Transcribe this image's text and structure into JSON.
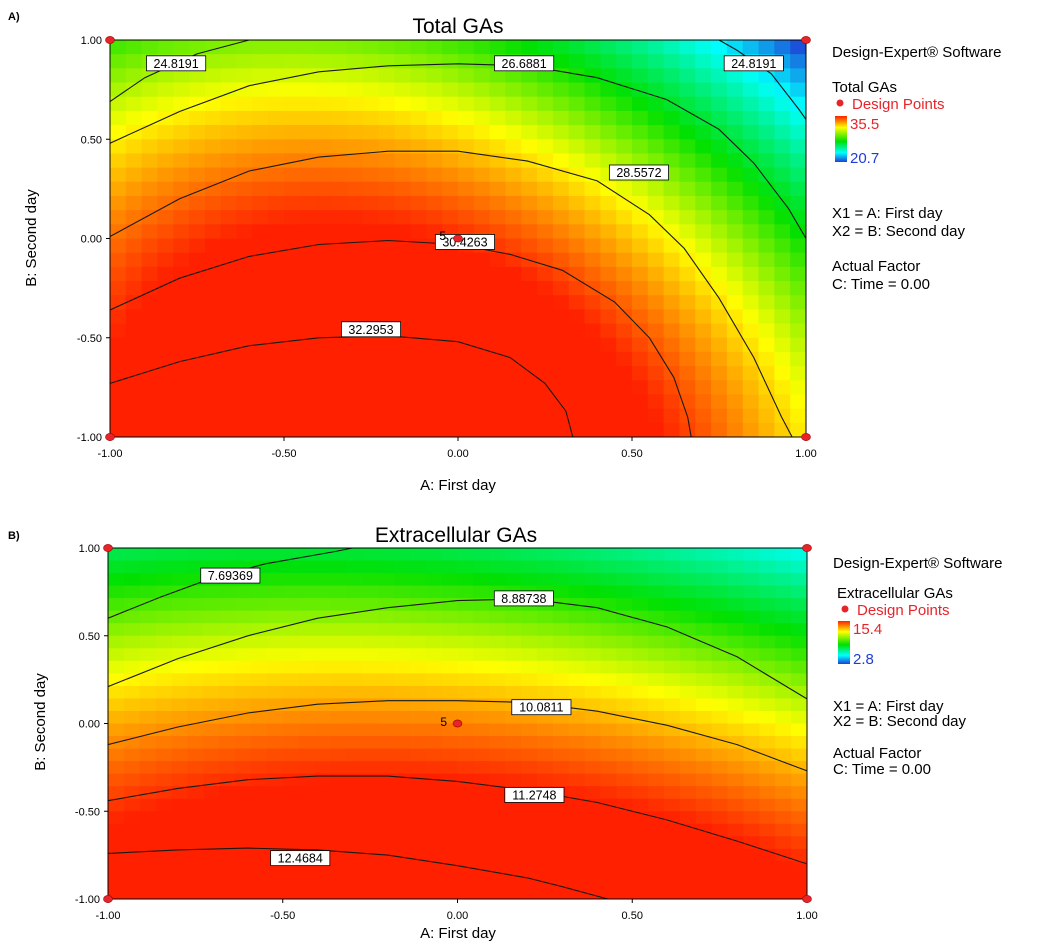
{
  "panels": [
    {
      "tag": "A)",
      "title": "Total GAs",
      "xlabel": "A: First day",
      "ylabel": "B: Second day",
      "xticks": [
        "-1.00",
        "-0.50",
        "0.00",
        "0.50",
        "1.00"
      ],
      "yticks": [
        "1.00",
        "0.50",
        "0.00",
        "-0.50",
        "-1.00"
      ],
      "legend": {
        "software": "Design-Expert® Software",
        "response": "Total GAs",
        "design_points": "Design Points",
        "high": "35.5",
        "low": "20.7",
        "x1": "X1 = A: First day",
        "x2": "X2 = B: Second day",
        "actual_factor": "Actual Factor",
        "factor_value": "C: Time = 0.00"
      },
      "center_point_label": "5"
    },
    {
      "tag": "B)",
      "title": "Extracellular GAs",
      "xlabel": "A: First day",
      "ylabel": "B: Second day",
      "xticks": [
        "-1.00",
        "-0.50",
        "0.00",
        "0.50",
        "1.00"
      ],
      "yticks": [
        "1.00",
        "0.50",
        "0.00",
        "-0.50",
        "-1.00"
      ],
      "legend": {
        "software": "Design-Expert® Software",
        "response": "Extracellular GAs",
        "design_points": "Design Points",
        "high": "15.4",
        "low": "2.8",
        "x1": "X1 = A: First day",
        "x2": "X2 = B: Second day",
        "actual_factor": "Actual Factor",
        "factor_value": "C: Time = 0.00"
      },
      "center_point_label": "5"
    }
  ],
  "chart_data": [
    {
      "type": "heatmap",
      "title": "Total GAs",
      "xlabel": "A: First day",
      "ylabel": "B: Second day",
      "xlim": [
        -1,
        1
      ],
      "ylim": [
        -1,
        1
      ],
      "color_range": [
        20.7,
        35.5
      ],
      "colors": {
        "low": "#1f3dd6",
        "mid_low": "#00ffff",
        "mid": "#00e000",
        "mid_high": "#ffff00",
        "high": "#ff2000"
      },
      "contour_levels": [
        24.8191,
        26.6881,
        28.5572,
        30.4263,
        32.2953
      ],
      "contour_labels": [
        {
          "text": "24.8191",
          "x": -0.81,
          "y": 0.88
        },
        {
          "text": "26.6881",
          "x": 0.19,
          "y": 0.88
        },
        {
          "text": "24.8191",
          "x": 0.85,
          "y": 0.88
        },
        {
          "text": "28.5572",
          "x": 0.52,
          "y": 0.33
        },
        {
          "text": "30.4263",
          "x": 0.02,
          "y": -0.02
        },
        {
          "text": "32.2953",
          "x": -0.25,
          "y": -0.46
        }
      ],
      "contours": [
        {
          "level": 24.8191,
          "points": [
            [
              -1.0,
              0.69
            ],
            [
              -0.9,
              0.81
            ],
            [
              -0.8,
              0.89
            ],
            [
              -0.75,
              0.93
            ],
            [
              -0.6,
              1.0
            ]
          ]
        },
        {
          "level": 24.8191,
          "points": [
            [
              0.75,
              1.0
            ],
            [
              0.8,
              0.95
            ],
            [
              0.9,
              0.83
            ],
            [
              0.98,
              0.65
            ],
            [
              1.0,
              0.6
            ]
          ]
        },
        {
          "level": 26.6881,
          "points": [
            [
              -1.0,
              0.48
            ],
            [
              -0.8,
              0.64
            ],
            [
              -0.6,
              0.77
            ],
            [
              -0.4,
              0.84
            ],
            [
              -0.2,
              0.87
            ],
            [
              0.0,
              0.88
            ],
            [
              0.2,
              0.87
            ],
            [
              0.4,
              0.81
            ],
            [
              0.6,
              0.7
            ],
            [
              0.75,
              0.55
            ],
            [
              0.85,
              0.38
            ],
            [
              0.95,
              0.15
            ],
            [
              1.0,
              0.0
            ]
          ]
        },
        {
          "level": 28.5572,
          "points": [
            [
              -1.0,
              0.01
            ],
            [
              -0.8,
              0.2
            ],
            [
              -0.6,
              0.34
            ],
            [
              -0.4,
              0.41
            ],
            [
              -0.2,
              0.44
            ],
            [
              0.0,
              0.44
            ],
            [
              0.2,
              0.39
            ],
            [
              0.4,
              0.29
            ],
            [
              0.55,
              0.12
            ],
            [
              0.65,
              -0.05
            ],
            [
              0.75,
              -0.3
            ],
            [
              0.85,
              -0.6
            ],
            [
              0.93,
              -0.9
            ],
            [
              0.96,
              -1.0
            ]
          ]
        },
        {
          "level": 30.4263,
          "points": [
            [
              -1.0,
              -0.36
            ],
            [
              -0.8,
              -0.2
            ],
            [
              -0.6,
              -0.09
            ],
            [
              -0.4,
              -0.03
            ],
            [
              -0.2,
              -0.01
            ],
            [
              0.0,
              -0.03
            ],
            [
              0.15,
              -0.08
            ],
            [
              0.3,
              -0.16
            ],
            [
              0.45,
              -0.32
            ],
            [
              0.55,
              -0.5
            ],
            [
              0.62,
              -0.7
            ],
            [
              0.66,
              -0.9
            ],
            [
              0.67,
              -1.0
            ]
          ]
        },
        {
          "level": 32.2953,
          "points": [
            [
              -1.0,
              -0.73
            ],
            [
              -0.8,
              -0.62
            ],
            [
              -0.6,
              -0.54
            ],
            [
              -0.4,
              -0.5
            ],
            [
              -0.2,
              -0.49
            ],
            [
              0.0,
              -0.52
            ],
            [
              0.15,
              -0.6
            ],
            [
              0.25,
              -0.73
            ],
            [
              0.31,
              -0.87
            ],
            [
              0.33,
              -1.0
            ]
          ]
        }
      ],
      "design_points": [
        [
          -1,
          1
        ],
        [
          1,
          1
        ],
        [
          0,
          0
        ],
        [
          -1,
          -1
        ],
        [
          1,
          -1
        ]
      ]
    },
    {
      "type": "heatmap",
      "title": "Extracellular GAs",
      "xlabel": "A: First day",
      "ylabel": "B: Second day",
      "xlim": [
        -1,
        1
      ],
      "ylim": [
        -1,
        1
      ],
      "color_range": [
        2.8,
        15.4
      ],
      "colors": {
        "low": "#1f3dd6",
        "mid_low": "#00ffff",
        "mid": "#00e000",
        "mid_high": "#ffff00",
        "high": "#ff2000"
      },
      "contour_levels": [
        7.69369,
        8.88738,
        10.0811,
        11.2748,
        12.4684
      ],
      "contour_labels": [
        {
          "text": "7.69369",
          "x": -0.65,
          "y": 0.84
        },
        {
          "text": "8.88738",
          "x": 0.19,
          "y": 0.71
        },
        {
          "text": "10.0811",
          "x": 0.24,
          "y": 0.09
        },
        {
          "text": "11.2748",
          "x": 0.22,
          "y": -0.41
        },
        {
          "text": "12.4684",
          "x": -0.45,
          "y": -0.77
        }
      ],
      "contours": [
        {
          "level": 7.69369,
          "points": [
            [
              -1.0,
              0.6
            ],
            [
              -0.85,
              0.72
            ],
            [
              -0.7,
              0.83
            ],
            [
              -0.55,
              0.91
            ],
            [
              -0.35,
              0.98
            ],
            [
              -0.3,
              1.0
            ]
          ]
        },
        {
          "level": 8.88738,
          "points": [
            [
              -1.0,
              0.21
            ],
            [
              -0.8,
              0.37
            ],
            [
              -0.6,
              0.5
            ],
            [
              -0.4,
              0.6
            ],
            [
              -0.2,
              0.66
            ],
            [
              0.0,
              0.7
            ],
            [
              0.2,
              0.71
            ],
            [
              0.4,
              0.66
            ],
            [
              0.6,
              0.55
            ],
            [
              0.8,
              0.38
            ],
            [
              1.0,
              0.14
            ]
          ]
        },
        {
          "level": 10.0811,
          "points": [
            [
              -1.0,
              -0.12
            ],
            [
              -0.8,
              -0.02
            ],
            [
              -0.6,
              0.06
            ],
            [
              -0.4,
              0.11
            ],
            [
              -0.2,
              0.13
            ],
            [
              0.0,
              0.13
            ],
            [
              0.2,
              0.12
            ],
            [
              0.4,
              0.07
            ],
            [
              0.6,
              -0.01
            ],
            [
              0.8,
              -0.12
            ],
            [
              1.0,
              -0.27
            ]
          ]
        },
        {
          "level": 11.2748,
          "points": [
            [
              -1.0,
              -0.44
            ],
            [
              -0.8,
              -0.37
            ],
            [
              -0.6,
              -0.32
            ],
            [
              -0.4,
              -0.3
            ],
            [
              -0.2,
              -0.3
            ],
            [
              0.0,
              -0.33
            ],
            [
              0.2,
              -0.38
            ],
            [
              0.4,
              -0.45
            ],
            [
              0.6,
              -0.55
            ],
            [
              0.8,
              -0.67
            ],
            [
              1.0,
              -0.8
            ]
          ]
        },
        {
          "level": 12.4684,
          "points": [
            [
              -1.0,
              -0.74
            ],
            [
              -0.8,
              -0.72
            ],
            [
              -0.6,
              -0.71
            ],
            [
              -0.4,
              -0.72
            ],
            [
              -0.2,
              -0.75
            ],
            [
              0.0,
              -0.81
            ],
            [
              0.2,
              -0.88
            ],
            [
              0.3,
              -0.93
            ],
            [
              0.43,
              -1.0
            ]
          ]
        }
      ],
      "design_points": [
        [
          -1,
          1
        ],
        [
          1,
          1
        ],
        [
          0,
          0
        ],
        [
          -1,
          -1
        ],
        [
          1,
          -1
        ]
      ]
    }
  ]
}
